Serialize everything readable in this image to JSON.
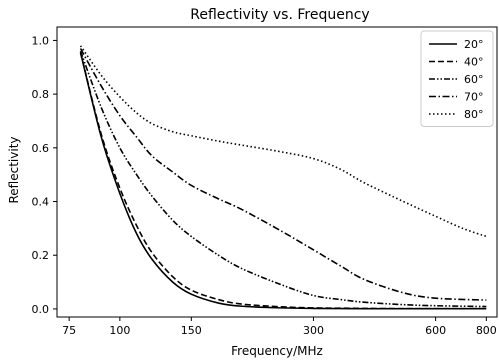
{
  "chart_data": {
    "type": "line",
    "title": "Reflectivity  vs. Frequency",
    "xlabel": "Frequency/MHz",
    "ylabel": "Reflectivity",
    "xscale": "log",
    "xlim": [
      70,
      850
    ],
    "ylim": [
      -0.03,
      1.05
    ],
    "xticks": [
      75,
      100,
      150,
      300,
      600,
      800
    ],
    "xtick_labels": [
      "75",
      "100",
      "150",
      "300",
      "600",
      "800"
    ],
    "yticks": [
      0.0,
      0.2,
      0.4,
      0.6,
      0.8,
      1.0
    ],
    "ytick_labels": [
      "0.0",
      "0.2",
      "0.4",
      "0.6",
      "0.8",
      "1.0"
    ],
    "grid": false,
    "legend_position": "top-right",
    "series": [
      {
        "name": "20°",
        "dash": "solid",
        "x": [
          80,
          90,
          100,
          110,
          120,
          135,
          150,
          175,
          200,
          250,
          300,
          400,
          500,
          600,
          800
        ],
        "y": [
          0.955,
          0.64,
          0.43,
          0.28,
          0.185,
          0.1,
          0.055,
          0.022,
          0.01,
          0.004,
          0.002,
          0.001,
          0.001,
          0.001,
          0.001
        ]
      },
      {
        "name": "40°",
        "dash": "dashed",
        "x": [
          80,
          90,
          100,
          110,
          120,
          135,
          150,
          175,
          200,
          250,
          300,
          400,
          500,
          600,
          800
        ],
        "y": [
          0.955,
          0.65,
          0.45,
          0.31,
          0.21,
          0.12,
          0.07,
          0.035,
          0.018,
          0.008,
          0.004,
          0.002,
          0.001,
          0.001,
          0.001
        ]
      },
      {
        "name": "60°",
        "dash": "dashdotdot",
        "x": [
          80,
          90,
          100,
          110,
          120,
          135,
          150,
          175,
          200,
          250,
          300,
          350,
          400,
          500,
          600,
          800
        ],
        "y": [
          0.96,
          0.75,
          0.6,
          0.5,
          0.42,
          0.33,
          0.27,
          0.2,
          0.15,
          0.09,
          0.05,
          0.035,
          0.025,
          0.016,
          0.012,
          0.009
        ]
      },
      {
        "name": "70°",
        "dash": "dashdot",
        "x": [
          80,
          90,
          100,
          110,
          120,
          135,
          150,
          175,
          200,
          250,
          300,
          350,
          400,
          500,
          600,
          800
        ],
        "y": [
          0.97,
          0.83,
          0.72,
          0.64,
          0.57,
          0.51,
          0.46,
          0.41,
          0.37,
          0.29,
          0.22,
          0.16,
          0.11,
          0.06,
          0.04,
          0.033
        ]
      },
      {
        "name": "80°",
        "dash": "dotted",
        "x": [
          80,
          90,
          100,
          110,
          120,
          135,
          150,
          175,
          200,
          250,
          300,
          350,
          400,
          500,
          600,
          700,
          800
        ],
        "y": [
          0.98,
          0.87,
          0.79,
          0.73,
          0.69,
          0.66,
          0.645,
          0.625,
          0.61,
          0.585,
          0.56,
          0.52,
          0.47,
          0.4,
          0.345,
          0.3,
          0.27
        ]
      }
    ]
  }
}
